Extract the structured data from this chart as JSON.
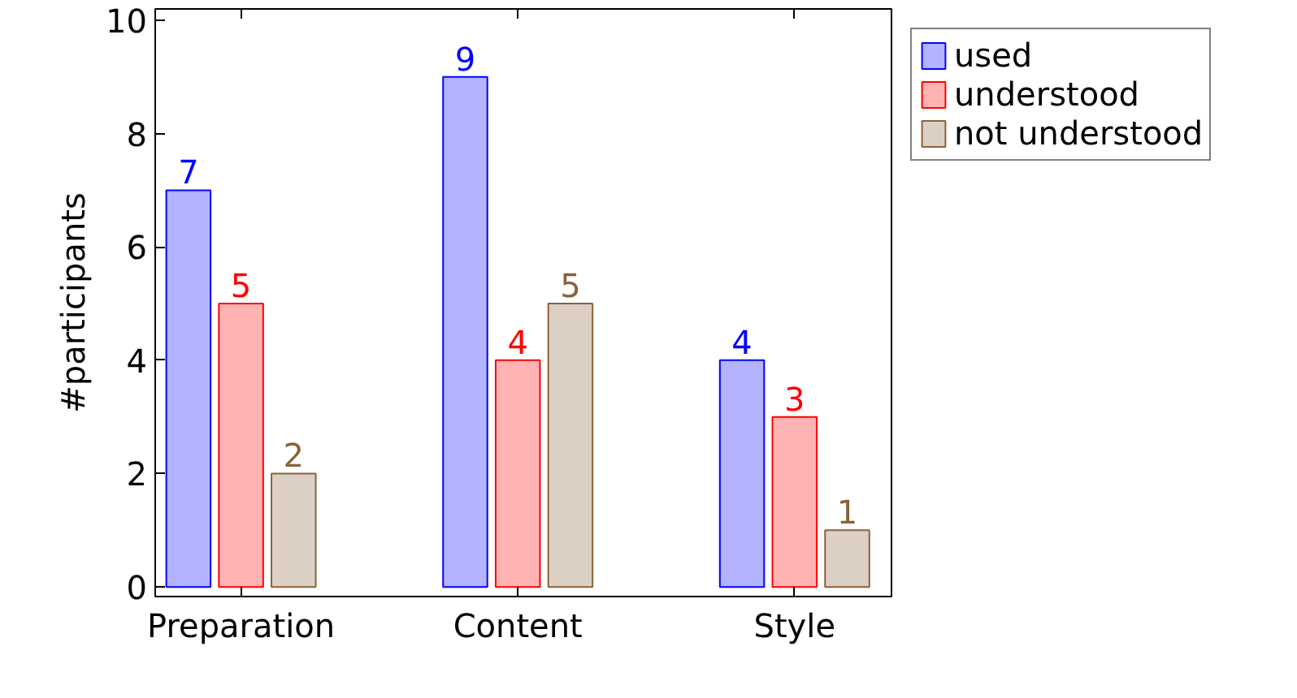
{
  "chart_data": {
    "type": "bar",
    "ylabel": "#participants",
    "categories": [
      "Preparation",
      "Content",
      "Style"
    ],
    "series": [
      {
        "name": "used",
        "color": "#b3b3ff",
        "values": [
          7,
          9,
          4
        ]
      },
      {
        "name": "understood",
        "color": "#ffb3b3",
        "values": [
          5,
          4,
          3
        ]
      },
      {
        "name": "not understood",
        "color": "#dcd0c4",
        "values": [
          2,
          5,
          1
        ]
      }
    ],
    "ylim": [
      -0.17,
      10.2
    ],
    "yticks": [
      0,
      2,
      4,
      6,
      8,
      10
    ],
    "data_labels": true,
    "grid": false,
    "legend": "top right"
  }
}
